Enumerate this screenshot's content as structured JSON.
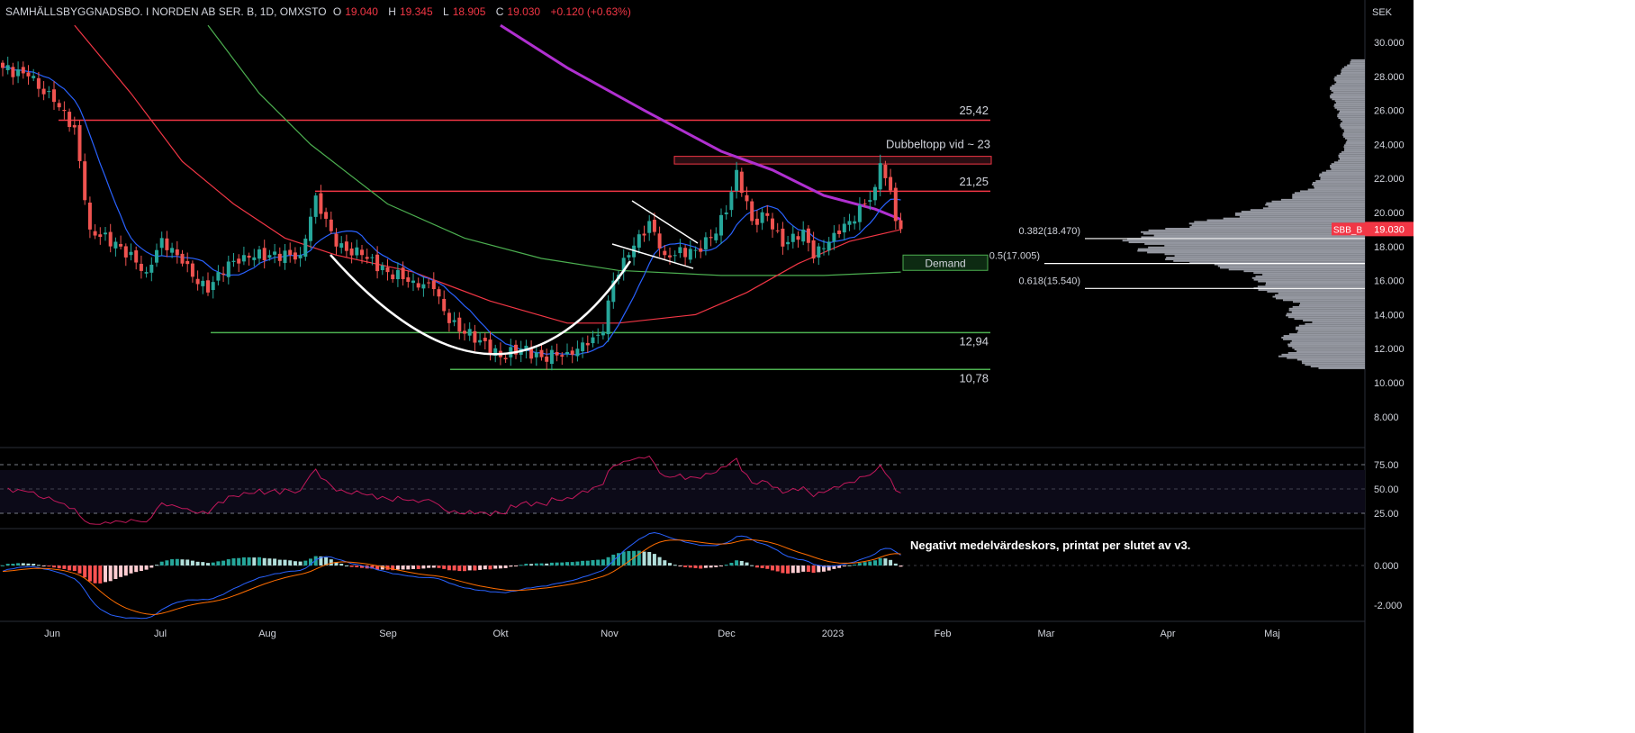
{
  "header": {
    "symbol": "SAMHÄLLSBYGGNADSBO. I NORDEN AB SER. B, 1D, OMXSTO",
    "open_label": "O",
    "open": "19.040",
    "high_label": "H",
    "high": "19.345",
    "low_label": "L",
    "low": "18.905",
    "close_label": "C",
    "close": "19.030",
    "change": "+0.120 (+0.63%)"
  },
  "currency": "SEK",
  "price_badge": {
    "ticker": "SBB_B",
    "price": "19.030"
  },
  "colors": {
    "up": "#26a69a",
    "down": "#ef5350",
    "ma_fast": "#2962ff",
    "ma_mid": "#f23645",
    "ma_slow": "#4caf50",
    "ma_long": "#b030d0",
    "rsi": "#c2185b",
    "macd": "#2962ff",
    "signal": "#ff6d00"
  },
  "chart_data": {
    "type": "candlestick",
    "price_axis": {
      "ylim": [
        7,
        31
      ],
      "ticks": [
        "30.000",
        "28.000",
        "26.000",
        "24.000",
        "22.000",
        "20.000",
        "18.000",
        "16.000",
        "14.000",
        "12.000",
        "10.000",
        "8.000"
      ]
    },
    "time_axis": {
      "ticks": [
        "Jun",
        "Jul",
        "Aug",
        "Sep",
        "Okt",
        "Nov",
        "Dec",
        "2023",
        "Feb",
        "Mar",
        "Apr",
        "Maj"
      ]
    },
    "close_anchors": [
      [
        0,
        28.5
      ],
      [
        5,
        28
      ],
      [
        10,
        26.5
      ],
      [
        14,
        25
      ],
      [
        17,
        19
      ],
      [
        23,
        18
      ],
      [
        28,
        16.5
      ],
      [
        31,
        18.5
      ],
      [
        35,
        17
      ],
      [
        40,
        15.3
      ],
      [
        42,
        16.5
      ],
      [
        47,
        17.5
      ],
      [
        52,
        17.5
      ],
      [
        58,
        17.5
      ],
      [
        61,
        21
      ],
      [
        65,
        18
      ],
      [
        70,
        17.5
      ],
      [
        75,
        16.5
      ],
      [
        80,
        16
      ],
      [
        84,
        15.5
      ],
      [
        87,
        13.5
      ],
      [
        93,
        12.5
      ],
      [
        97,
        11.5
      ],
      [
        101,
        12
      ],
      [
        105,
        11.5
      ],
      [
        110,
        11.8
      ],
      [
        114,
        12.2
      ],
      [
        117,
        13
      ],
      [
        119,
        16
      ],
      [
        122,
        17.5
      ],
      [
        126,
        19.5
      ],
      [
        129,
        17.5
      ],
      [
        135,
        17.8
      ],
      [
        138,
        18.5
      ],
      [
        141,
        20
      ],
      [
        143,
        22.5
      ],
      [
        146,
        19.5
      ],
      [
        149,
        19.8
      ],
      [
        152,
        18
      ],
      [
        156,
        19
      ],
      [
        158,
        17.3
      ],
      [
        162,
        18.8
      ],
      [
        165,
        19.5
      ],
      [
        168,
        20.5
      ],
      [
        170,
        21.5
      ],
      [
        171,
        22.9
      ],
      [
        173,
        21.3
      ],
      [
        174,
        19.5
      ],
      [
        175,
        19.03
      ]
    ],
    "moving_averages": [
      {
        "name": "MA long",
        "color_key": "ma_long",
        "points": [
          [
            97,
            31
          ],
          [
            110,
            28.5
          ],
          [
            125,
            26
          ],
          [
            140,
            23.6
          ],
          [
            150,
            22.5
          ],
          [
            160,
            21
          ],
          [
            170,
            20.2
          ],
          [
            175,
            19.6
          ]
        ]
      },
      {
        "name": "MA slow",
        "color_key": "ma_slow",
        "points": [
          [
            40,
            31
          ],
          [
            50,
            27
          ],
          [
            60,
            24
          ],
          [
            75,
            20.5
          ],
          [
            90,
            18.5
          ],
          [
            105,
            17.3
          ],
          [
            120,
            16.6
          ],
          [
            140,
            16.3
          ],
          [
            160,
            16.3
          ],
          [
            175,
            16.5
          ]
        ]
      },
      {
        "name": "MA mid",
        "color_key": "ma_mid",
        "points": [
          [
            14,
            31
          ],
          [
            25,
            27
          ],
          [
            35,
            23
          ],
          [
            45,
            20.5
          ],
          [
            55,
            18.5
          ],
          [
            65,
            17.5
          ],
          [
            80,
            16.5
          ],
          [
            95,
            14.8
          ],
          [
            110,
            13.5
          ],
          [
            120,
            13.5
          ],
          [
            135,
            14
          ],
          [
            145,
            15.3
          ],
          [
            155,
            17
          ],
          [
            165,
            18.3
          ],
          [
            175,
            19
          ]
        ]
      }
    ],
    "horizontal_levels": [
      {
        "label": "25,42",
        "price": 25.42,
        "color": "#f23645"
      },
      {
        "label": "21,25",
        "price": 21.25,
        "color": "#f23645"
      },
      {
        "label": "12,94",
        "price": 12.94,
        "color": "#4caf50"
      },
      {
        "label": "10,78",
        "price": 10.78,
        "color": "#4caf50"
      }
    ],
    "zones": [
      {
        "label": "Dubbeltopp vid ~ 23",
        "top": 23.3,
        "bottom": 22.85
      },
      {
        "label": "Demand",
        "top": 17.5,
        "bottom": 16.6
      }
    ],
    "fib_levels": [
      {
        "label": "0.382(18.470)",
        "price": 18.47
      },
      {
        "label": "0.5(17.005)",
        "price": 17.005
      },
      {
        "label": "0.618(15.540)",
        "price": 15.54
      }
    ],
    "volume_profile": [
      [
        10.8,
        0.2
      ],
      [
        11.5,
        0.35
      ],
      [
        12,
        0.3
      ],
      [
        12.5,
        0.35
      ],
      [
        13,
        0.3
      ],
      [
        13.5,
        0.25
      ],
      [
        14,
        0.35
      ],
      [
        14.5,
        0.28
      ],
      [
        15,
        0.38
      ],
      [
        15.5,
        0.45
      ],
      [
        16,
        0.45
      ],
      [
        16.5,
        0.5
      ],
      [
        17,
        0.75
      ],
      [
        17.5,
        0.9
      ],
      [
        18,
        0.95
      ],
      [
        18.5,
        1.0
      ],
      [
        19,
        0.85
      ],
      [
        19.5,
        0.65
      ],
      [
        20,
        0.5
      ],
      [
        20.5,
        0.4
      ],
      [
        21,
        0.3
      ],
      [
        21.5,
        0.22
      ],
      [
        22,
        0.2
      ],
      [
        23,
        0.12
      ],
      [
        24,
        0.08
      ],
      [
        25,
        0.1
      ],
      [
        26,
        0.12
      ],
      [
        27,
        0.15
      ],
      [
        28,
        0.12
      ],
      [
        29,
        0.05
      ]
    ],
    "rsi": {
      "levels": [
        "75.00",
        "50.00",
        "25.00"
      ],
      "ylim": [
        0,
        100
      ]
    },
    "macd": {
      "ticks": [
        "0.000",
        "-2.000"
      ],
      "annotation": "Negativt medelvärdeskors, printat per slutet av v3."
    }
  }
}
